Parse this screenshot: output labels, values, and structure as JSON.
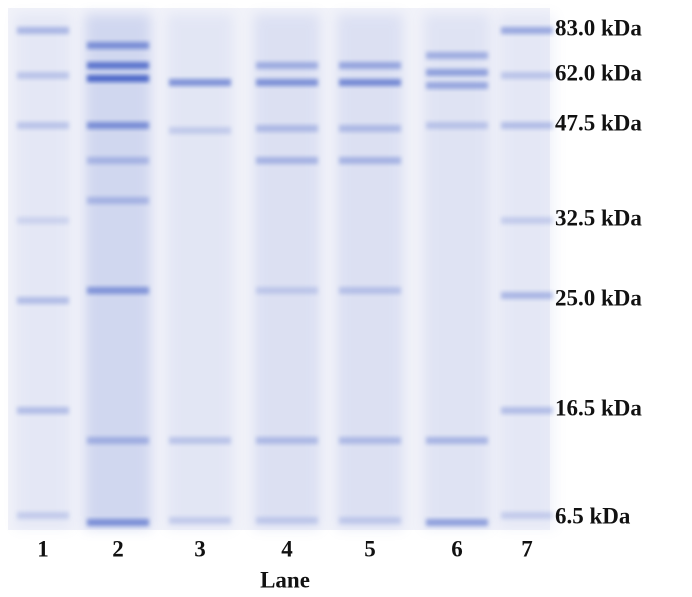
{
  "markers": [
    "83.0 kDa",
    "62.0 kDa",
    "47.5 kDa",
    "32.5 kDa",
    "25.0 kDa",
    "16.5 kDa",
    "6.5 kDa"
  ],
  "lanes": [
    "1",
    "2",
    "3",
    "4",
    "5",
    "6",
    "7"
  ],
  "axis_label": "Lane"
}
